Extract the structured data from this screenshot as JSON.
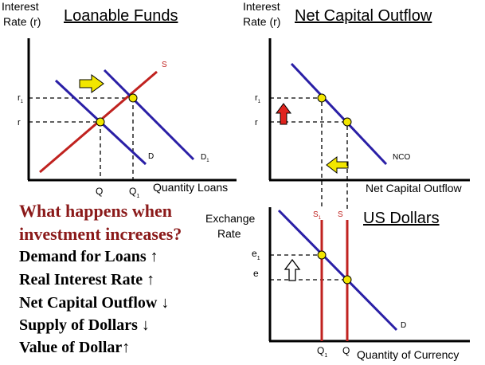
{
  "panels": {
    "loanable_funds": {
      "title": "Loanable Funds",
      "y_axis_label_line1": "Interest",
      "y_axis_label_line2": "Rate (r)",
      "x_axis_label": "Quantity Loans",
      "curve_supply": "S",
      "curve_demand": "D",
      "curve_demand_new": "D",
      "curve_demand_new_sub": "1",
      "tick_r1": "r",
      "tick_r1_sub": "1",
      "tick_r": "r",
      "tick_q": "Q",
      "tick_q1": "Q",
      "tick_q1_sub": "1"
    },
    "net_capital_outflow": {
      "title": "Net Capital Outflow",
      "y_axis_label_line1": "Interest",
      "y_axis_label_line2": "Rate (r)",
      "x_axis_label": "Net Capital Outflow",
      "curve": "NCO",
      "tick_r1": "r",
      "tick_r1_sub": "1",
      "tick_r": "r"
    },
    "us_dollars": {
      "title": "US Dollars",
      "y_axis_label_line1": "Exchange",
      "y_axis_label_line2": "Rate",
      "x_axis_label": "Quantity of Currency",
      "curve_supply": "S",
      "curve_supply_new": "S",
      "curve_supply_new_sub": "1",
      "curve_demand": "D",
      "tick_e1": "e",
      "tick_e1_sub": "1",
      "tick_e": "e",
      "tick_q": "Q",
      "tick_q1": "Q",
      "tick_q1_sub": "1"
    }
  },
  "question": {
    "line1": "What happens when",
    "line2": "investment increases?"
  },
  "answers": [
    "Demand for Loans ↑",
    "Real Interest Rate ↑",
    "Net Capital Outflow ↓",
    "Supply of Dollars ↓",
    "Value of Dollar↑"
  ],
  "colors": {
    "supply": "#c0221f",
    "demand": "#2a1fa6",
    "point": "#f2e600",
    "arrow_yellow": "#f2e600",
    "arrow_red": "#e0231e",
    "question": "#8b1a1a"
  }
}
